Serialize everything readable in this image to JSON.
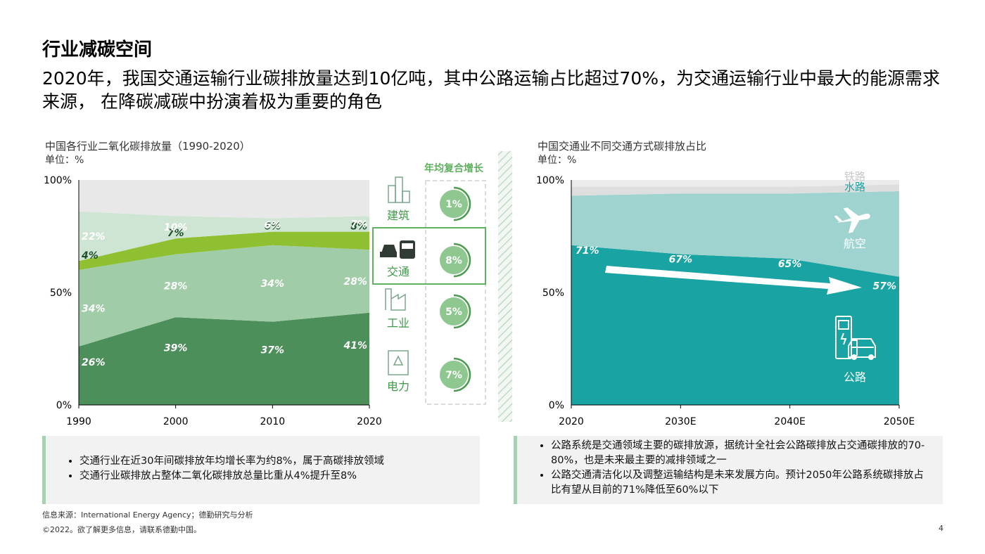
{
  "header": {
    "title": "行业减碳空间",
    "subtitle": "2020年，我国交通运输行业碳排放量达到10亿吨，其中公路运输占比超过70%，为交通运输行业中最大的能源需求来源， 在降碳减碳中扮演着极为重要的角色"
  },
  "left_chart": {
    "title": "中国各行业二氧化碳排放量（1990-2020）",
    "unit": "单位：%",
    "cagr_header": "年均复合增长"
  },
  "right_chart": {
    "title": "中国交通业不同交通方式碳排放占比",
    "unit": "单位：%"
  },
  "colors": {
    "industry": "#4c8f5b",
    "transport": "#8fc031",
    "electricity": "#a0cca8",
    "building": "#cfe5d4",
    "other": "#e8e8e8",
    "road": "#1aa3a3",
    "aviation": "#9fd3cf",
    "water": "#dedede",
    "rail": "#ebebeb",
    "accent": "#5fb05f"
  },
  "chart_data": [
    {
      "type": "area",
      "stacked": true,
      "x": [
        "1990",
        "2000",
        "2010",
        "2020"
      ],
      "ylim": [
        0,
        100
      ],
      "yticks": [
        "0%",
        "50%",
        "100%"
      ],
      "series": [
        {
          "name": "工业",
          "values": [
            26,
            39,
            37,
            41
          ],
          "labels": [
            "26%",
            "39%",
            "37%",
            "41%"
          ]
        },
        {
          "name": "电力",
          "values": [
            34,
            28,
            34,
            28
          ],
          "labels": [
            "34%",
            "28%",
            "34%",
            "28%"
          ]
        },
        {
          "name": "交通",
          "values": [
            4,
            7,
            6,
            8
          ],
          "labels": [
            "4%",
            "7%",
            "6%",
            "8%"
          ]
        },
        {
          "name": "建筑",
          "values": [
            22,
            10,
            6,
            7
          ],
          "labels": [
            "22%",
            "10%",
            "6%",
            "7%"
          ]
        },
        {
          "values": [
            14,
            16,
            17,
            16
          ]
        }
      ],
      "cagr": [
        {
          "sector": "建筑",
          "icon": "building-icon",
          "value": "1%"
        },
        {
          "sector": "交通",
          "icon": "vehicle-icon",
          "value": "8%"
        },
        {
          "sector": "工业",
          "icon": "factory-icon",
          "value": "5%"
        },
        {
          "sector": "电力",
          "icon": "power-box-icon",
          "value": "7%"
        }
      ]
    },
    {
      "type": "area",
      "stacked": true,
      "x": [
        "2020",
        "2030E",
        "2040E",
        "2050E"
      ],
      "ylim": [
        0,
        100
      ],
      "yticks": [
        "0%",
        "50%",
        "100%"
      ],
      "series": [
        {
          "name": "公路",
          "values": [
            71,
            67,
            65,
            57
          ],
          "labels": [
            "71%",
            "67%",
            "65%",
            "57%"
          ]
        },
        {
          "name": "航空",
          "values": [
            22,
            27,
            29,
            38
          ]
        },
        {
          "name": "水路",
          "values": [
            4,
            3,
            3,
            3
          ]
        },
        {
          "name": "铁路",
          "values": [
            3,
            3,
            3,
            2
          ]
        }
      ]
    }
  ],
  "notes": {
    "left": [
      "交通行业在近30年间碳排放年均增长率为约8%，属于高碳排放领域",
      "交通行业碳排放占整体二氧化碳排放总量比重从4%提升至8%"
    ],
    "right": [
      "公路系统是交通领域主要的碳排放源，据统计全社会公路碳排放占交通碳排放的70-80%，也是未来最主要的减排领域之一",
      "公路交通清洁化以及调整运输结构是未来发展方向。预计2050年公路系统碳排放占比有望从目前的71%降低至60%以下"
    ]
  },
  "footer": {
    "source": "信息来源：International Energy Agency；德勤研究与分析",
    "copyright": "©2022。欲了解更多信息，请联系德勤中国。",
    "page": "4"
  }
}
